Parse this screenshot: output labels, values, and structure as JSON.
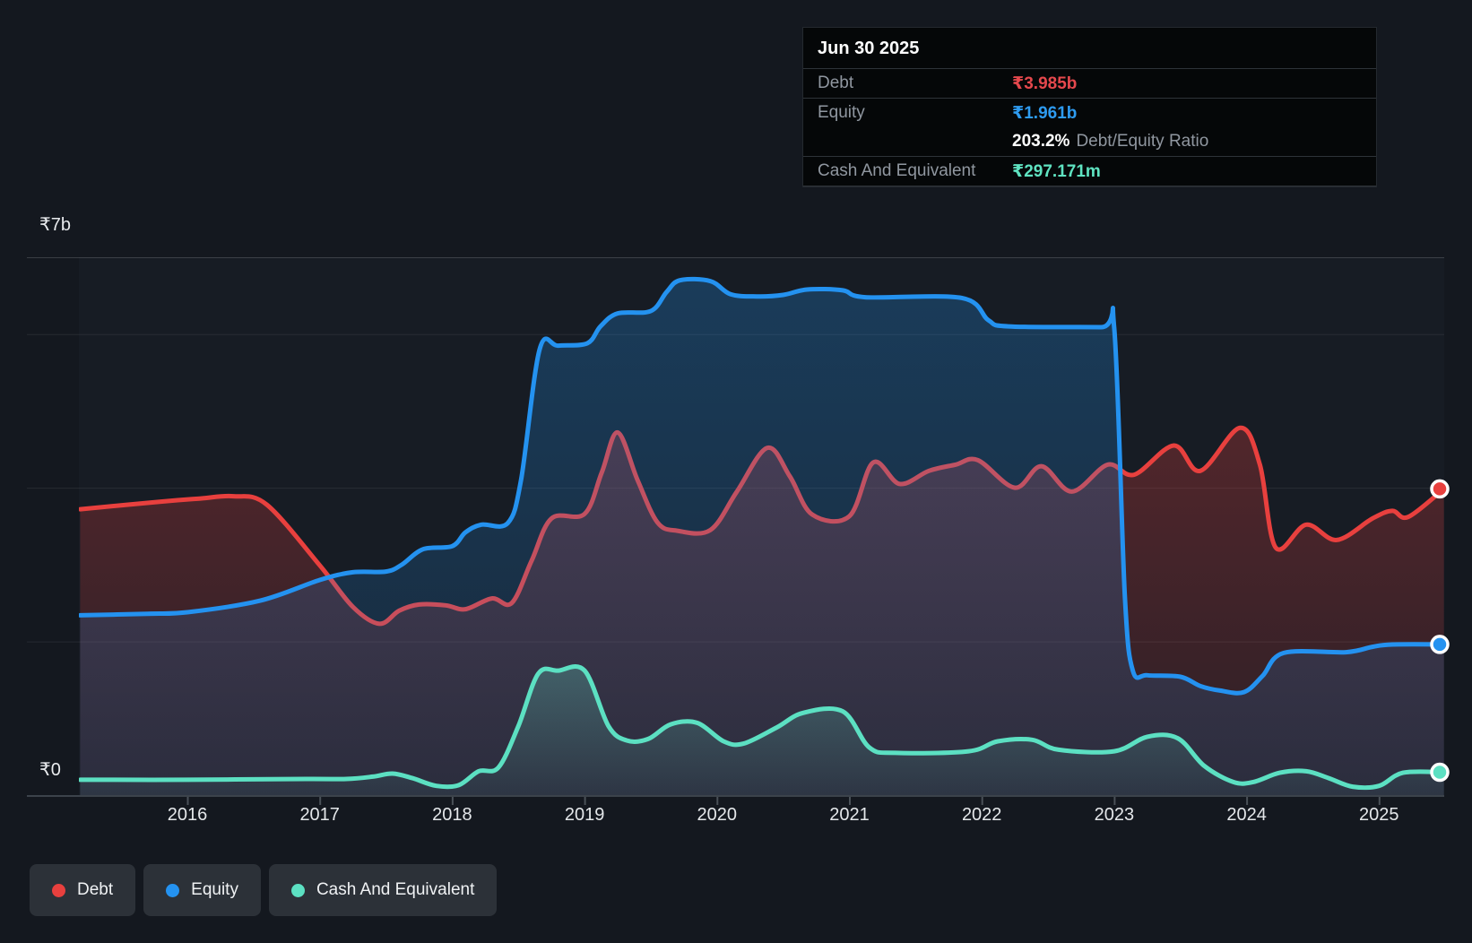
{
  "tooltip": {
    "date": "Jun 30 2025",
    "debt_label": "Debt",
    "debt_value": "₹3.985b",
    "equity_label": "Equity",
    "equity_value": "₹1.961b",
    "ratio_value": "203.2%",
    "ratio_label": "Debt/Equity Ratio",
    "cash_label": "Cash And Equivalent",
    "cash_value": "₹297.171m"
  },
  "legend": [
    {
      "label": "Debt",
      "color": "#e8403e"
    },
    {
      "label": "Equity",
      "color": "#2492f0"
    },
    {
      "label": "Cash And Equivalent",
      "color": "#5ce0c2"
    }
  ],
  "chart_data": {
    "type": "area",
    "title": "",
    "xlabel": "",
    "ylabel": "",
    "x_axis": {
      "ticks": [
        2016,
        2017,
        2018,
        2019,
        2020,
        2021,
        2022,
        2023,
        2024,
        2025
      ],
      "min": 2015.19,
      "max": 2025.49
    },
    "y_axis": {
      "top_label": "₹7b",
      "zero_label": "₹0",
      "max_billions": 7,
      "min_billions": 0,
      "gridline_values": [
        6,
        4,
        2
      ]
    },
    "legend_position": "bottom-left",
    "grid": "horizontal-faint",
    "series": [
      {
        "name": "Debt",
        "color": "#e8403e",
        "unit": "₹ billions",
        "end_value": 3.985,
        "points": [
          [
            2015.19,
            3.72
          ],
          [
            2015.8,
            3.82
          ],
          [
            2016.1,
            3.86
          ],
          [
            2016.35,
            3.89
          ],
          [
            2016.6,
            3.78
          ],
          [
            2017.0,
            2.99
          ],
          [
            2017.25,
            2.45
          ],
          [
            2017.45,
            2.23
          ],
          [
            2017.6,
            2.4
          ],
          [
            2017.75,
            2.48
          ],
          [
            2017.95,
            2.47
          ],
          [
            2018.1,
            2.42
          ],
          [
            2018.3,
            2.56
          ],
          [
            2018.45,
            2.5
          ],
          [
            2018.6,
            3.05
          ],
          [
            2018.75,
            3.6
          ],
          [
            2019.0,
            3.66
          ],
          [
            2019.13,
            4.2
          ],
          [
            2019.25,
            4.72
          ],
          [
            2019.4,
            4.1
          ],
          [
            2019.55,
            3.55
          ],
          [
            2019.7,
            3.44
          ],
          [
            2019.95,
            3.45
          ],
          [
            2020.15,
            3.95
          ],
          [
            2020.38,
            4.52
          ],
          [
            2020.55,
            4.15
          ],
          [
            2020.72,
            3.65
          ],
          [
            2021.0,
            3.63
          ],
          [
            2021.18,
            4.33
          ],
          [
            2021.38,
            4.05
          ],
          [
            2021.6,
            4.22
          ],
          [
            2021.8,
            4.3
          ],
          [
            2021.97,
            4.36
          ],
          [
            2022.25,
            4.0
          ],
          [
            2022.45,
            4.28
          ],
          [
            2022.68,
            3.95
          ],
          [
            2022.95,
            4.3
          ],
          [
            2023.15,
            4.17
          ],
          [
            2023.45,
            4.55
          ],
          [
            2023.65,
            4.22
          ],
          [
            2023.95,
            4.78
          ],
          [
            2024.1,
            4.3
          ],
          [
            2024.22,
            3.22
          ],
          [
            2024.45,
            3.52
          ],
          [
            2024.68,
            3.32
          ],
          [
            2024.95,
            3.6
          ],
          [
            2025.1,
            3.7
          ],
          [
            2025.22,
            3.62
          ],
          [
            2025.49,
            3.985
          ]
        ]
      },
      {
        "name": "Equity",
        "color": "#2492f0",
        "unit": "₹ billions",
        "end_value": 1.961,
        "points": [
          [
            2015.19,
            2.34
          ],
          [
            2015.7,
            2.36
          ],
          [
            2016.0,
            2.38
          ],
          [
            2016.55,
            2.53
          ],
          [
            2017.0,
            2.8
          ],
          [
            2017.25,
            2.9
          ],
          [
            2017.5,
            2.91
          ],
          [
            2017.62,
            3.0
          ],
          [
            2017.78,
            3.2
          ],
          [
            2018.0,
            3.24
          ],
          [
            2018.1,
            3.42
          ],
          [
            2018.22,
            3.52
          ],
          [
            2018.42,
            3.54
          ],
          [
            2018.52,
            4.1
          ],
          [
            2018.66,
            5.8
          ],
          [
            2018.8,
            5.85
          ],
          [
            2019.02,
            5.88
          ],
          [
            2019.12,
            6.1
          ],
          [
            2019.25,
            6.27
          ],
          [
            2019.5,
            6.3
          ],
          [
            2019.62,
            6.55
          ],
          [
            2019.72,
            6.7
          ],
          [
            2019.95,
            6.69
          ],
          [
            2020.1,
            6.52
          ],
          [
            2020.3,
            6.49
          ],
          [
            2020.5,
            6.51
          ],
          [
            2020.68,
            6.58
          ],
          [
            2020.95,
            6.57
          ],
          [
            2021.12,
            6.48
          ],
          [
            2021.85,
            6.47
          ],
          [
            2022.05,
            6.18
          ],
          [
            2022.2,
            6.1
          ],
          [
            2022.9,
            6.09
          ],
          [
            2023.0,
            6.08
          ],
          [
            2023.08,
            2.6
          ],
          [
            2023.14,
            1.62
          ],
          [
            2023.25,
            1.56
          ],
          [
            2023.5,
            1.54
          ],
          [
            2023.65,
            1.42
          ],
          [
            2023.8,
            1.36
          ],
          [
            2023.98,
            1.34
          ],
          [
            2024.12,
            1.55
          ],
          [
            2024.28,
            1.85
          ],
          [
            2024.75,
            1.86
          ],
          [
            2024.95,
            1.93
          ],
          [
            2025.1,
            1.96
          ],
          [
            2025.49,
            1.961
          ]
        ]
      },
      {
        "name": "Cash And Equivalent",
        "color": "#5ce0c2",
        "unit": "₹ billions",
        "end_value": 0.297,
        "points": [
          [
            2015.19,
            0.2
          ],
          [
            2016.0,
            0.2
          ],
          [
            2016.9,
            0.21
          ],
          [
            2017.2,
            0.21
          ],
          [
            2017.4,
            0.24
          ],
          [
            2017.55,
            0.28
          ],
          [
            2017.7,
            0.22
          ],
          [
            2017.88,
            0.12
          ],
          [
            2018.05,
            0.13
          ],
          [
            2018.2,
            0.31
          ],
          [
            2018.35,
            0.36
          ],
          [
            2018.5,
            0.9
          ],
          [
            2018.65,
            1.58
          ],
          [
            2018.8,
            1.62
          ],
          [
            2019.0,
            1.62
          ],
          [
            2019.18,
            0.9
          ],
          [
            2019.32,
            0.71
          ],
          [
            2019.48,
            0.73
          ],
          [
            2019.65,
            0.92
          ],
          [
            2019.85,
            0.94
          ],
          [
            2020.05,
            0.7
          ],
          [
            2020.2,
            0.67
          ],
          [
            2020.45,
            0.88
          ],
          [
            2020.65,
            1.07
          ],
          [
            2020.95,
            1.09
          ],
          [
            2021.15,
            0.62
          ],
          [
            2021.35,
            0.55
          ],
          [
            2021.9,
            0.57
          ],
          [
            2022.12,
            0.7
          ],
          [
            2022.38,
            0.72
          ],
          [
            2022.58,
            0.59
          ],
          [
            2023.0,
            0.57
          ],
          [
            2023.25,
            0.76
          ],
          [
            2023.48,
            0.74
          ],
          [
            2023.68,
            0.38
          ],
          [
            2023.9,
            0.17
          ],
          [
            2024.05,
            0.17
          ],
          [
            2024.25,
            0.29
          ],
          [
            2024.45,
            0.31
          ],
          [
            2024.62,
            0.22
          ],
          [
            2024.8,
            0.11
          ],
          [
            2025.0,
            0.12
          ],
          [
            2025.18,
            0.29
          ],
          [
            2025.49,
            0.297
          ]
        ]
      }
    ]
  }
}
